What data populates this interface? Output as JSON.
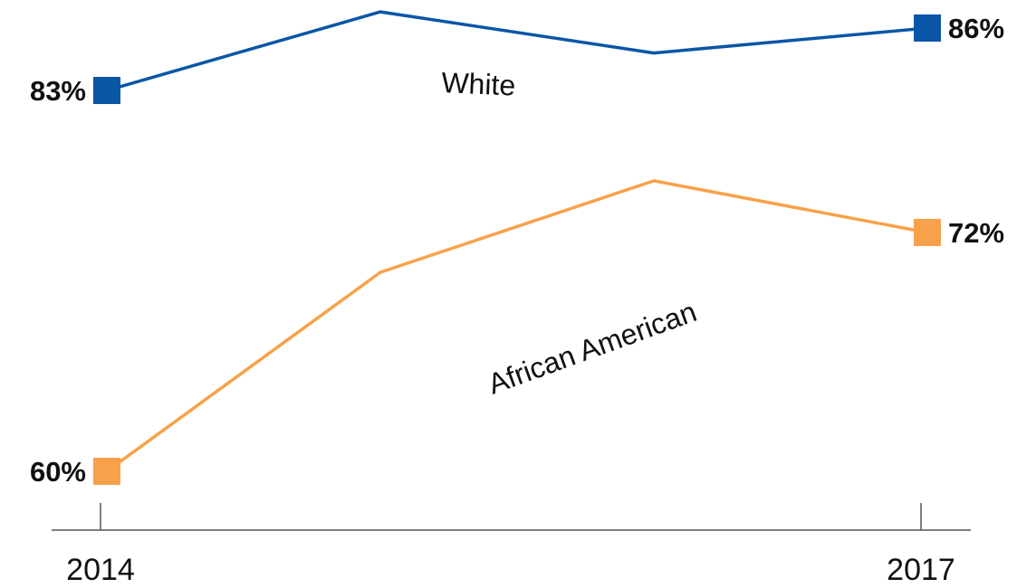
{
  "chart_data": {
    "type": "line",
    "categories": [
      "2014",
      "",
      "",
      "2017"
    ],
    "x": [
      2014,
      2015,
      2016,
      2017
    ],
    "x_tick_labels": [
      "2014",
      "2017"
    ],
    "series": [
      {
        "name": "White",
        "values": [
          83,
          87.7,
          84.8,
          86
        ],
        "end_labels": [
          "83%",
          "86%"
        ],
        "color": "#0a56a6"
      },
      {
        "name": "African American",
        "values": [
          60,
          70,
          76,
          72
        ],
        "end_labels": [
          "60%",
          "72%"
        ],
        "color": "#f7a24a"
      }
    ],
    "title": "",
    "xlabel": "",
    "ylabel": "",
    "ylim": [
      57,
      91
    ],
    "grid": false,
    "axis_color": "#555555"
  }
}
